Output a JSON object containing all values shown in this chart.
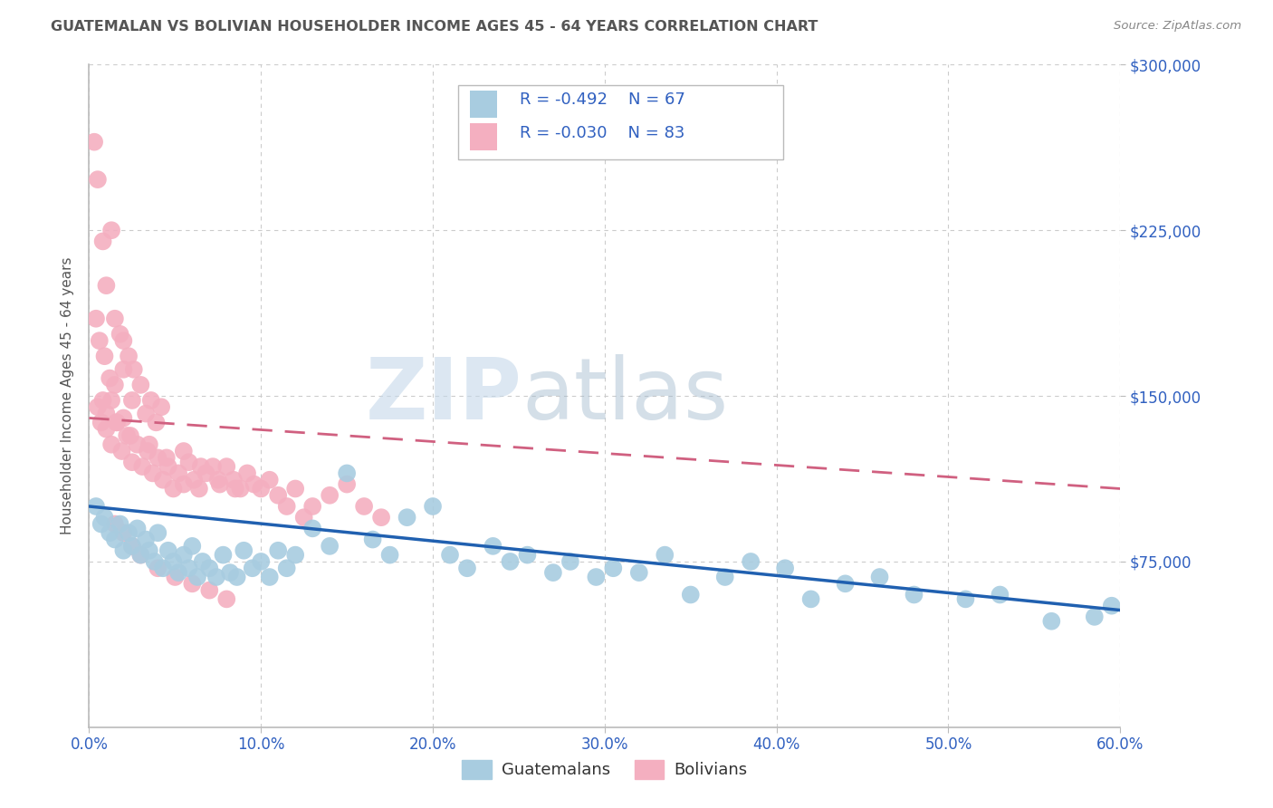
{
  "title": "GUATEMALAN VS BOLIVIAN HOUSEHOLDER INCOME AGES 45 - 64 YEARS CORRELATION CHART",
  "source": "Source: ZipAtlas.com",
  "ylabel": "Householder Income Ages 45 - 64 years",
  "xlabel_ticks": [
    "0.0%",
    "10.0%",
    "20.0%",
    "30.0%",
    "40.0%",
    "50.0%",
    "60.0%"
  ],
  "xlabel_vals": [
    0.0,
    10.0,
    20.0,
    30.0,
    40.0,
    50.0,
    60.0
  ],
  "ytick_vals": [
    75000,
    150000,
    225000,
    300000
  ],
  "ytick_labels": [
    "$75,000",
    "$150,000",
    "$225,000",
    "$300,000"
  ],
  "watermark_zip": "ZIP",
  "watermark_atlas": "atlas",
  "blue_R": -0.492,
  "blue_N": 67,
  "pink_R": -0.03,
  "pink_N": 83,
  "blue_color": "#a8cce0",
  "pink_color": "#f4afc0",
  "blue_line_color": "#2060b0",
  "pink_line_color": "#d06080",
  "legend_text_color": "#3060c0",
  "title_color": "#555555",
  "axis_color": "#bbbbbb",
  "grid_color": "#cccccc",
  "blue_scatter_x": [
    0.4,
    0.7,
    0.9,
    1.2,
    1.5,
    1.8,
    2.0,
    2.3,
    2.5,
    2.8,
    3.0,
    3.3,
    3.5,
    3.8,
    4.0,
    4.3,
    4.6,
    4.9,
    5.2,
    5.5,
    5.8,
    6.0,
    6.3,
    6.6,
    7.0,
    7.4,
    7.8,
    8.2,
    8.6,
    9.0,
    9.5,
    10.0,
    10.5,
    11.0,
    11.5,
    12.0,
    13.0,
    14.0,
    15.0,
    16.5,
    17.5,
    18.5,
    20.0,
    21.0,
    22.0,
    23.5,
    24.5,
    25.5,
    27.0,
    28.0,
    29.5,
    30.5,
    32.0,
    33.5,
    35.0,
    37.0,
    38.5,
    40.5,
    42.0,
    44.0,
    46.0,
    48.0,
    51.0,
    53.0,
    56.0,
    58.5,
    59.5
  ],
  "blue_scatter_y": [
    100000,
    92000,
    95000,
    88000,
    85000,
    92000,
    80000,
    88000,
    82000,
    90000,
    78000,
    85000,
    80000,
    75000,
    88000,
    72000,
    80000,
    75000,
    70000,
    78000,
    72000,
    82000,
    68000,
    75000,
    72000,
    68000,
    78000,
    70000,
    68000,
    80000,
    72000,
    75000,
    68000,
    80000,
    72000,
    78000,
    90000,
    82000,
    115000,
    85000,
    78000,
    95000,
    100000,
    78000,
    72000,
    82000,
    75000,
    78000,
    70000,
    75000,
    68000,
    72000,
    70000,
    78000,
    60000,
    68000,
    75000,
    72000,
    58000,
    65000,
    68000,
    60000,
    58000,
    60000,
    48000,
    50000,
    55000
  ],
  "pink_scatter_x": [
    0.3,
    0.5,
    0.8,
    1.0,
    1.3,
    1.5,
    1.8,
    2.0,
    2.3,
    2.6,
    0.4,
    0.6,
    0.9,
    1.2,
    1.5,
    2.0,
    2.5,
    3.0,
    3.3,
    3.6,
    3.9,
    4.2,
    0.8,
    1.0,
    1.3,
    1.6,
    2.0,
    2.4,
    0.5,
    0.7,
    1.0,
    1.3,
    1.6,
    1.9,
    2.2,
    2.5,
    2.8,
    3.1,
    3.4,
    3.7,
    4.0,
    4.3,
    4.6,
    4.9,
    5.2,
    5.5,
    5.8,
    6.1,
    6.4,
    6.8,
    7.2,
    7.6,
    8.0,
    8.4,
    8.8,
    9.2,
    9.6,
    10.0,
    10.5,
    11.0,
    11.5,
    12.0,
    12.5,
    13.0,
    14.0,
    15.0,
    16.0,
    17.0,
    3.5,
    4.5,
    5.5,
    6.5,
    7.5,
    8.5,
    1.5,
    2.0,
    2.5,
    3.0,
    4.0,
    5.0,
    6.0,
    7.0,
    8.0
  ],
  "pink_scatter_y": [
    265000,
    248000,
    220000,
    200000,
    225000,
    185000,
    178000,
    175000,
    168000,
    162000,
    185000,
    175000,
    168000,
    158000,
    155000,
    162000,
    148000,
    155000,
    142000,
    148000,
    138000,
    145000,
    148000,
    142000,
    148000,
    138000,
    140000,
    132000,
    145000,
    138000,
    135000,
    128000,
    138000,
    125000,
    132000,
    120000,
    128000,
    118000,
    125000,
    115000,
    122000,
    112000,
    118000,
    108000,
    115000,
    110000,
    120000,
    112000,
    108000,
    115000,
    118000,
    110000,
    118000,
    112000,
    108000,
    115000,
    110000,
    108000,
    112000,
    105000,
    100000,
    108000,
    95000,
    100000,
    105000,
    110000,
    100000,
    95000,
    128000,
    122000,
    125000,
    118000,
    112000,
    108000,
    92000,
    88000,
    82000,
    78000,
    72000,
    68000,
    65000,
    62000,
    58000
  ],
  "blue_line_x": [
    0,
    60
  ],
  "blue_line_y": [
    100000,
    53000
  ],
  "pink_line_x": [
    0,
    60
  ],
  "pink_line_y": [
    140000,
    108000
  ],
  "xmin": 0,
  "xmax": 60,
  "ymin": 0,
  "ymax": 300000
}
